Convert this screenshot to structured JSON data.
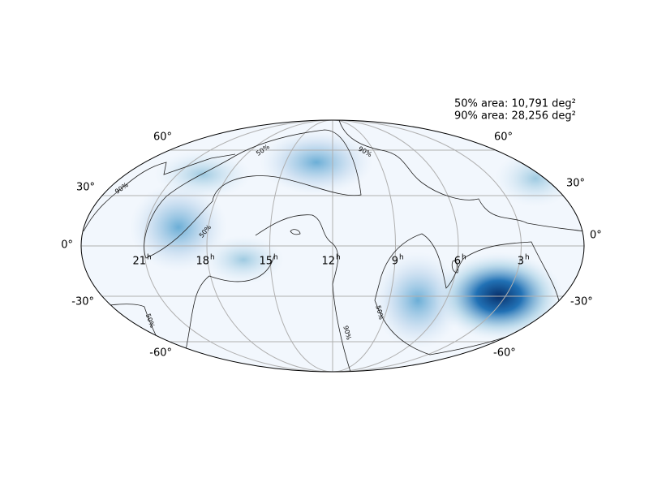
{
  "annotation": [
    "50% area: 10,791 deg²",
    "90% area: 28,256 deg²"
  ],
  "lat_labels_left": [
    "60°",
    "30°",
    "0°",
    "-30°",
    "-60°"
  ],
  "lat_labels_right": [
    "60°",
    "30°",
    "0°",
    "-30°",
    "-60°"
  ],
  "ra_labels": [
    {
      "text": "21",
      "sup": "h"
    },
    {
      "text": "18",
      "sup": "h"
    },
    {
      "text": "15",
      "sup": "h"
    },
    {
      "text": "12",
      "sup": "h"
    },
    {
      "text": "9",
      "sup": "h"
    },
    {
      "text": "6",
      "sup": "h"
    },
    {
      "text": "3",
      "sup": "h"
    }
  ],
  "contour_labels": [
    "90%",
    "50%",
    "90%",
    "50%",
    "50%",
    "50%",
    "90%"
  ]
}
